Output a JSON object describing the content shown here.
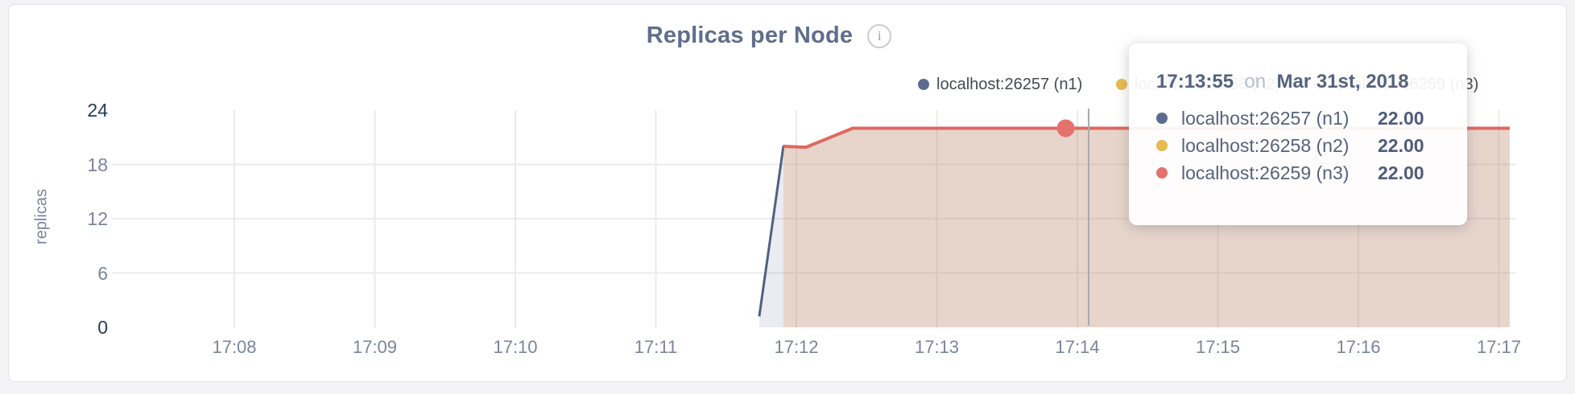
{
  "header": {
    "title": "Replicas per Node",
    "info_icon_glyph": "i"
  },
  "legend": {
    "items": [
      {
        "label": "localhost:26257 (n1)",
        "color": "#5b6c8f"
      },
      {
        "label": "localhost:26258 (n2)",
        "color": "#e8bb52"
      },
      {
        "label": "localhost:26259 (n3)",
        "color": "#e4716b"
      }
    ]
  },
  "tooltip": {
    "time": "17:13:55",
    "conjunction": "on",
    "date": "Mar 31st, 2018",
    "rows": [
      {
        "label": "localhost:26257 (n1)",
        "value": "22.00",
        "color": "#5b6c8f"
      },
      {
        "label": "localhost:26258 (n2)",
        "value": "22.00",
        "color": "#e8bb52"
      },
      {
        "label": "localhost:26259 (n3)",
        "value": "22.00",
        "color": "#e4716b"
      }
    ]
  },
  "chart_data": {
    "type": "area",
    "title": "Replicas per Node",
    "ylabel": "replicas",
    "x_note": "x values are minutes after 17:08",
    "x_tick_labels": [
      "17:08",
      "17:09",
      "17:10",
      "17:11",
      "17:12",
      "17:13",
      "17:14",
      "17:15",
      "17:16",
      "17:17"
    ],
    "y_ticks": [
      0,
      6,
      12,
      18,
      24
    ],
    "ylim": [
      0,
      24
    ],
    "grid": true,
    "legend_position": "top-right",
    "fill_opacity": 0.13,
    "series": [
      {
        "name": "localhost:26257 (n1)",
        "line_color": "#51617f",
        "fill_color": "#5b6c8f",
        "line_width": 3,
        "points": [
          [
            3.736,
            1.2
          ],
          [
            3.908,
            20
          ],
          [
            4.069,
            19.9
          ],
          [
            4.401,
            22
          ],
          [
            9.077,
            22
          ]
        ]
      },
      {
        "name": "localhost:26258 (n2)",
        "line_color": "#e8bb52",
        "fill_color": "#e8bb52",
        "line_width": 3,
        "points": [
          [
            3.908,
            20
          ],
          [
            4.069,
            19.9
          ],
          [
            4.401,
            22
          ],
          [
            9.077,
            22
          ]
        ]
      },
      {
        "name": "localhost:26259 (n3)",
        "line_color": "#df6960",
        "fill_color": "#df6960",
        "line_width": 4,
        "points": [
          [
            3.908,
            20
          ],
          [
            4.069,
            19.9
          ],
          [
            4.401,
            22
          ],
          [
            9.077,
            22
          ]
        ]
      }
    ],
    "hover": {
      "crosshair_t": 6.08,
      "crosshair_color": "#a9a9ab",
      "marker": {
        "t": 5.917,
        "value": 22,
        "series": "localhost:26259 (n3)",
        "color": "#e4716b",
        "radius": 11
      }
    },
    "grid_color": "#ebebeb"
  }
}
